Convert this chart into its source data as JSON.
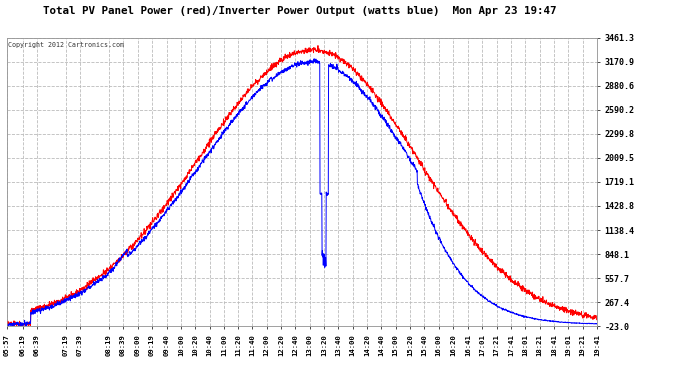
{
  "title": "Total PV Panel Power (red)/Inverter Power Output (watts blue)  Mon Apr 23 19:47",
  "copyright": "Copyright 2012 Cartronics.com",
  "yticks": [
    3461.3,
    3170.9,
    2880.6,
    2590.2,
    2299.8,
    2009.5,
    1719.1,
    1428.8,
    1138.4,
    848.1,
    557.7,
    267.4,
    -23.0
  ],
  "ymin": -23.0,
  "ymax": 3461.3,
  "xtick_labels": [
    "05:57",
    "06:19",
    "06:39",
    "07:19",
    "07:39",
    "08:19",
    "08:39",
    "09:00",
    "09:19",
    "09:40",
    "10:00",
    "10:20",
    "10:40",
    "11:00",
    "11:20",
    "11:40",
    "12:00",
    "12:20",
    "12:40",
    "13:00",
    "13:20",
    "13:40",
    "14:00",
    "14:20",
    "14:40",
    "15:00",
    "15:20",
    "15:40",
    "16:00",
    "16:20",
    "16:41",
    "17:01",
    "17:21",
    "17:41",
    "18:01",
    "18:21",
    "18:41",
    "19:01",
    "19:21",
    "19:41"
  ],
  "bg_color": "#ffffff",
  "plot_bg_color": "#ffffff",
  "grid_color": "#bbbbbb",
  "title_color": "#000000",
  "tick_color": "#000000",
  "red_color": "#ff0000",
  "blue_color": "#0000ff",
  "figwidth": 6.9,
  "figheight": 3.75,
  "dpi": 100
}
